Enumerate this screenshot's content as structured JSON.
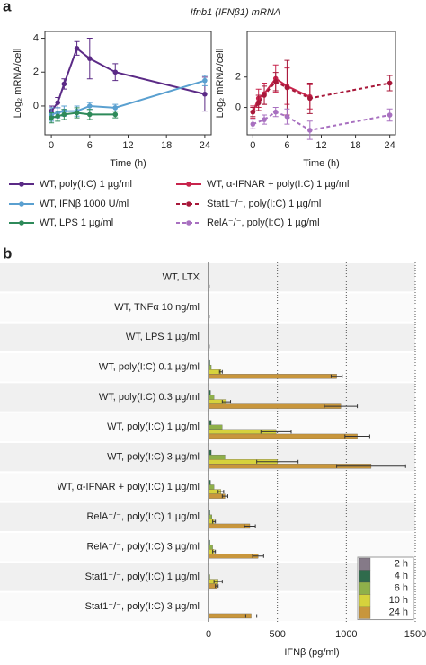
{
  "panel_labels": [
    "a",
    "b"
  ],
  "chart_data": [
    {
      "type": "line",
      "title": "Ifnb1 (IFNβ1) mRNA",
      "xlabel": "Time (h)",
      "ylabel": "Log₂ mRNA/cell",
      "xlim": [
        -1,
        25
      ],
      "xticks": [
        0,
        6,
        12,
        18,
        24
      ],
      "ylim": [
        -1.7,
        4.4
      ],
      "yticks": [
        0,
        2,
        4
      ],
      "series": [
        {
          "name": "WT, poly(I:C) 1 µg/ml",
          "color": "#5b2a86",
          "dashed": false,
          "x": [
            0,
            1,
            2,
            4,
            6,
            10,
            24
          ],
          "values": [
            -0.3,
            0.2,
            1.3,
            3.4,
            2.8,
            2.0,
            0.7
          ],
          "errors": [
            0.3,
            0.3,
            0.3,
            0.4,
            1.2,
            0.5,
            1.0
          ]
        },
        {
          "name": "WT, IFNβ 1000 U/ml",
          "color": "#5aa0d0",
          "dashed": false,
          "x": [
            0,
            1,
            2,
            4,
            6,
            10,
            24
          ],
          "values": [
            -0.5,
            -0.4,
            -0.3,
            -0.3,
            0.0,
            -0.1,
            1.5
          ],
          "errors": [
            0.4,
            0.3,
            0.3,
            0.3,
            0.2,
            0.2,
            0.3
          ]
        },
        {
          "name": "WT, LPS 1 µg/ml",
          "color": "#2e8a5a",
          "dashed": false,
          "x": [
            0,
            1,
            2,
            4,
            6,
            10
          ],
          "values": [
            -0.7,
            -0.6,
            -0.5,
            -0.4,
            -0.5,
            -0.5
          ],
          "errors": [
            0.3,
            0.3,
            0.3,
            0.3,
            0.3,
            0.2
          ]
        }
      ]
    },
    {
      "type": "line",
      "xlabel": "Time (h)",
      "ylabel": "Log₂ mRNA/cell",
      "xlim": [
        -1,
        25
      ],
      "xticks": [
        0,
        6,
        12,
        18,
        24
      ],
      "ylim": [
        -1.8,
        5
      ],
      "yticks": [
        0,
        2
      ],
      "series": [
        {
          "name": "WT, α-IFNAR + poly(I:C) 1 µg/ml",
          "color": "#c8244c",
          "dashed": false,
          "x": [
            0,
            1,
            2,
            4,
            6,
            10
          ],
          "values": [
            -0.3,
            0.6,
            0.9,
            1.9,
            1.4,
            0.7
          ],
          "errors": [
            0.4,
            0.6,
            0.7,
            0.9,
            1.2,
            0.8
          ]
        },
        {
          "name": "Stat1⁻/⁻, poly(I:C) 1 µg/ml",
          "color": "#a8183a",
          "dashed": true,
          "x": [
            0,
            1,
            2,
            4,
            6,
            10,
            24
          ],
          "values": [
            -0.3,
            0.3,
            0.8,
            1.7,
            1.3,
            0.6,
            1.6
          ],
          "errors": [
            0.3,
            0.5,
            0.6,
            0.6,
            1.8,
            1.0,
            0.5
          ]
        },
        {
          "name": "RelA⁻/⁻, poly(I:C) 1 µg/ml",
          "color": "#a870c0",
          "dashed": true,
          "x": [
            0,
            2,
            4,
            6,
            10,
            24
          ],
          "values": [
            -1.1,
            -0.8,
            -0.3,
            -0.6,
            -1.5,
            -0.5
          ],
          "errors": [
            0.3,
            0.3,
            0.3,
            0.5,
            0.6,
            0.4
          ]
        }
      ]
    },
    {
      "type": "barh",
      "xlabel": "IFNβ (pg/ml)",
      "xlim": [
        0,
        1500
      ],
      "xticks": [
        0,
        500,
        1000,
        1500
      ],
      "grid": true,
      "categories": [
        "WT, LTX",
        "WT, TNFα 10 ng/ml",
        "WT, LPS 1 µg/ml",
        "WT, poly(I:C) 0.1 µg/ml",
        "WT, poly(I:C) 0.3 µg/ml",
        "WT, poly(I:C) 1 µg/ml",
        "WT, poly(I:C) 3 µg/ml",
        "WT, α-IFNAR + poly(I:C) 1 µg/ml",
        "RelA⁻/⁻, poly(I:C) 1 µg/ml",
        "RelA⁻/⁻, poly(I:C) 3 µg/ml",
        "Stat1⁻/⁻, poly(I:C) 1 µg/ml",
        "Stat1⁻/⁻, poly(I:C) 3 µg/ml"
      ],
      "series": [
        {
          "name": "2 h",
          "color": "#857a88",
          "values": [
            0,
            0,
            0,
            5,
            5,
            5,
            5,
            5,
            3,
            3,
            3,
            0
          ]
        },
        {
          "name": "4 h",
          "color": "#2f6b4c",
          "values": [
            0,
            0,
            0,
            10,
            15,
            20,
            20,
            15,
            10,
            10,
            5,
            0
          ]
        },
        {
          "name": "6 h",
          "color": "#8fb04a",
          "values": [
            0,
            0,
            0,
            20,
            40,
            100,
            120,
            40,
            25,
            30,
            10,
            0
          ]
        },
        {
          "name": "10 h",
          "color": "#d6d23c",
          "values": [
            0,
            0,
            3,
            90,
            130,
            490,
            500,
            90,
            40,
            40,
            70,
            0
          ],
          "errors": [
            0,
            0,
            0,
            10,
            30,
            110,
            150,
            20,
            10,
            10,
            30,
            0
          ]
        },
        {
          "name": "24 h",
          "color": "#c8963c",
          "values": [
            5,
            5,
            5,
            930,
            960,
            1080,
            1180,
            120,
            300,
            360,
            60,
            310
          ],
          "errors": [
            0,
            0,
            0,
            40,
            120,
            90,
            250,
            20,
            40,
            40,
            10,
            40
          ]
        }
      ]
    }
  ]
}
